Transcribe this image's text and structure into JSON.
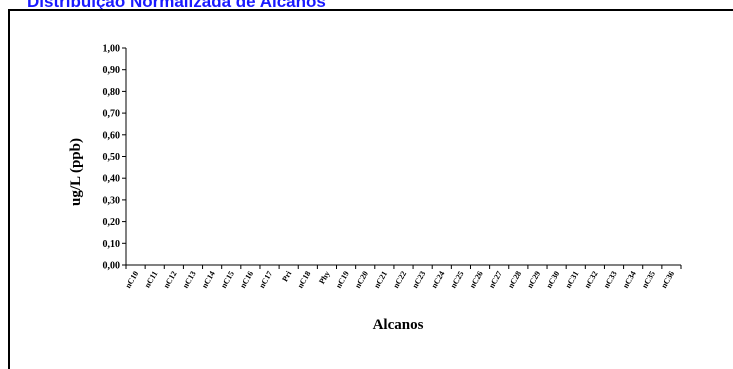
{
  "page_title": "Distribuição Normalizada de Alcanos",
  "chart_data": {
    "type": "bar",
    "title": "Distribuição Normalizada de Alcanos",
    "xlabel": "Alcanos",
    "ylabel": "ug/L (ppb)",
    "ylim": [
      0,
      1
    ],
    "y_ticks": [
      "0,00",
      "0,10",
      "0,20",
      "0,30",
      "0,40",
      "0,50",
      "0,60",
      "0,70",
      "0,80",
      "0,90",
      "1,00"
    ],
    "categories": [
      "nC10",
      "nC11",
      "nC12",
      "nC13",
      "nC14",
      "nC15",
      "nC16",
      "nC17",
      "Pri",
      "nC18",
      "Phy",
      "nC19",
      "nC20",
      "nC21",
      "nC22",
      "nC23",
      "nC24",
      "nC25",
      "nC26",
      "nC27",
      "nC28",
      "nC29",
      "nC30",
      "nC31",
      "nC32",
      "nC33",
      "nC34",
      "nC35",
      "nC36"
    ],
    "values": [
      0,
      0,
      0,
      0,
      0,
      0,
      0,
      0,
      0,
      0,
      0,
      0,
      0,
      0,
      0,
      0,
      0,
      0,
      0,
      0,
      0,
      0,
      0,
      0,
      0,
      0,
      0,
      0,
      0
    ],
    "grid": false,
    "colors": {
      "title": "#1a1aff",
      "axis": "#000000"
    }
  }
}
